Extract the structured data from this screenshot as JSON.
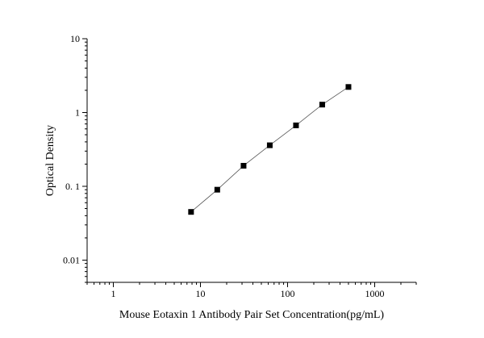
{
  "chart_data": {
    "type": "scatter",
    "title": "",
    "xlabel": "Mouse Eotaxin 1 Antibody Pair Set Concentration(pg/mL)",
    "ylabel": "Optical Density",
    "xscale": "log",
    "yscale": "log",
    "xlim": [
      0.5,
      3000
    ],
    "ylim": [
      0.005,
      10
    ],
    "x_ticks": [
      1,
      10,
      100,
      1000
    ],
    "x_tick_labels": [
      "1",
      "10",
      "100",
      "1000"
    ],
    "y_ticks": [
      0.01,
      0.1,
      1,
      10
    ],
    "y_tick_labels": [
      "0.01",
      "0. 1",
      "1",
      "10"
    ],
    "grid": false,
    "legend": "none",
    "fit_line": true,
    "point_color": "#000000",
    "line_color": "#555555",
    "series": [
      {
        "x": [
          7.8,
          15.6,
          31.25,
          62.5,
          125,
          250,
          500
        ],
        "y": [
          0.045,
          0.09,
          0.19,
          0.36,
          0.67,
          1.28,
          2.22
        ]
      }
    ]
  }
}
